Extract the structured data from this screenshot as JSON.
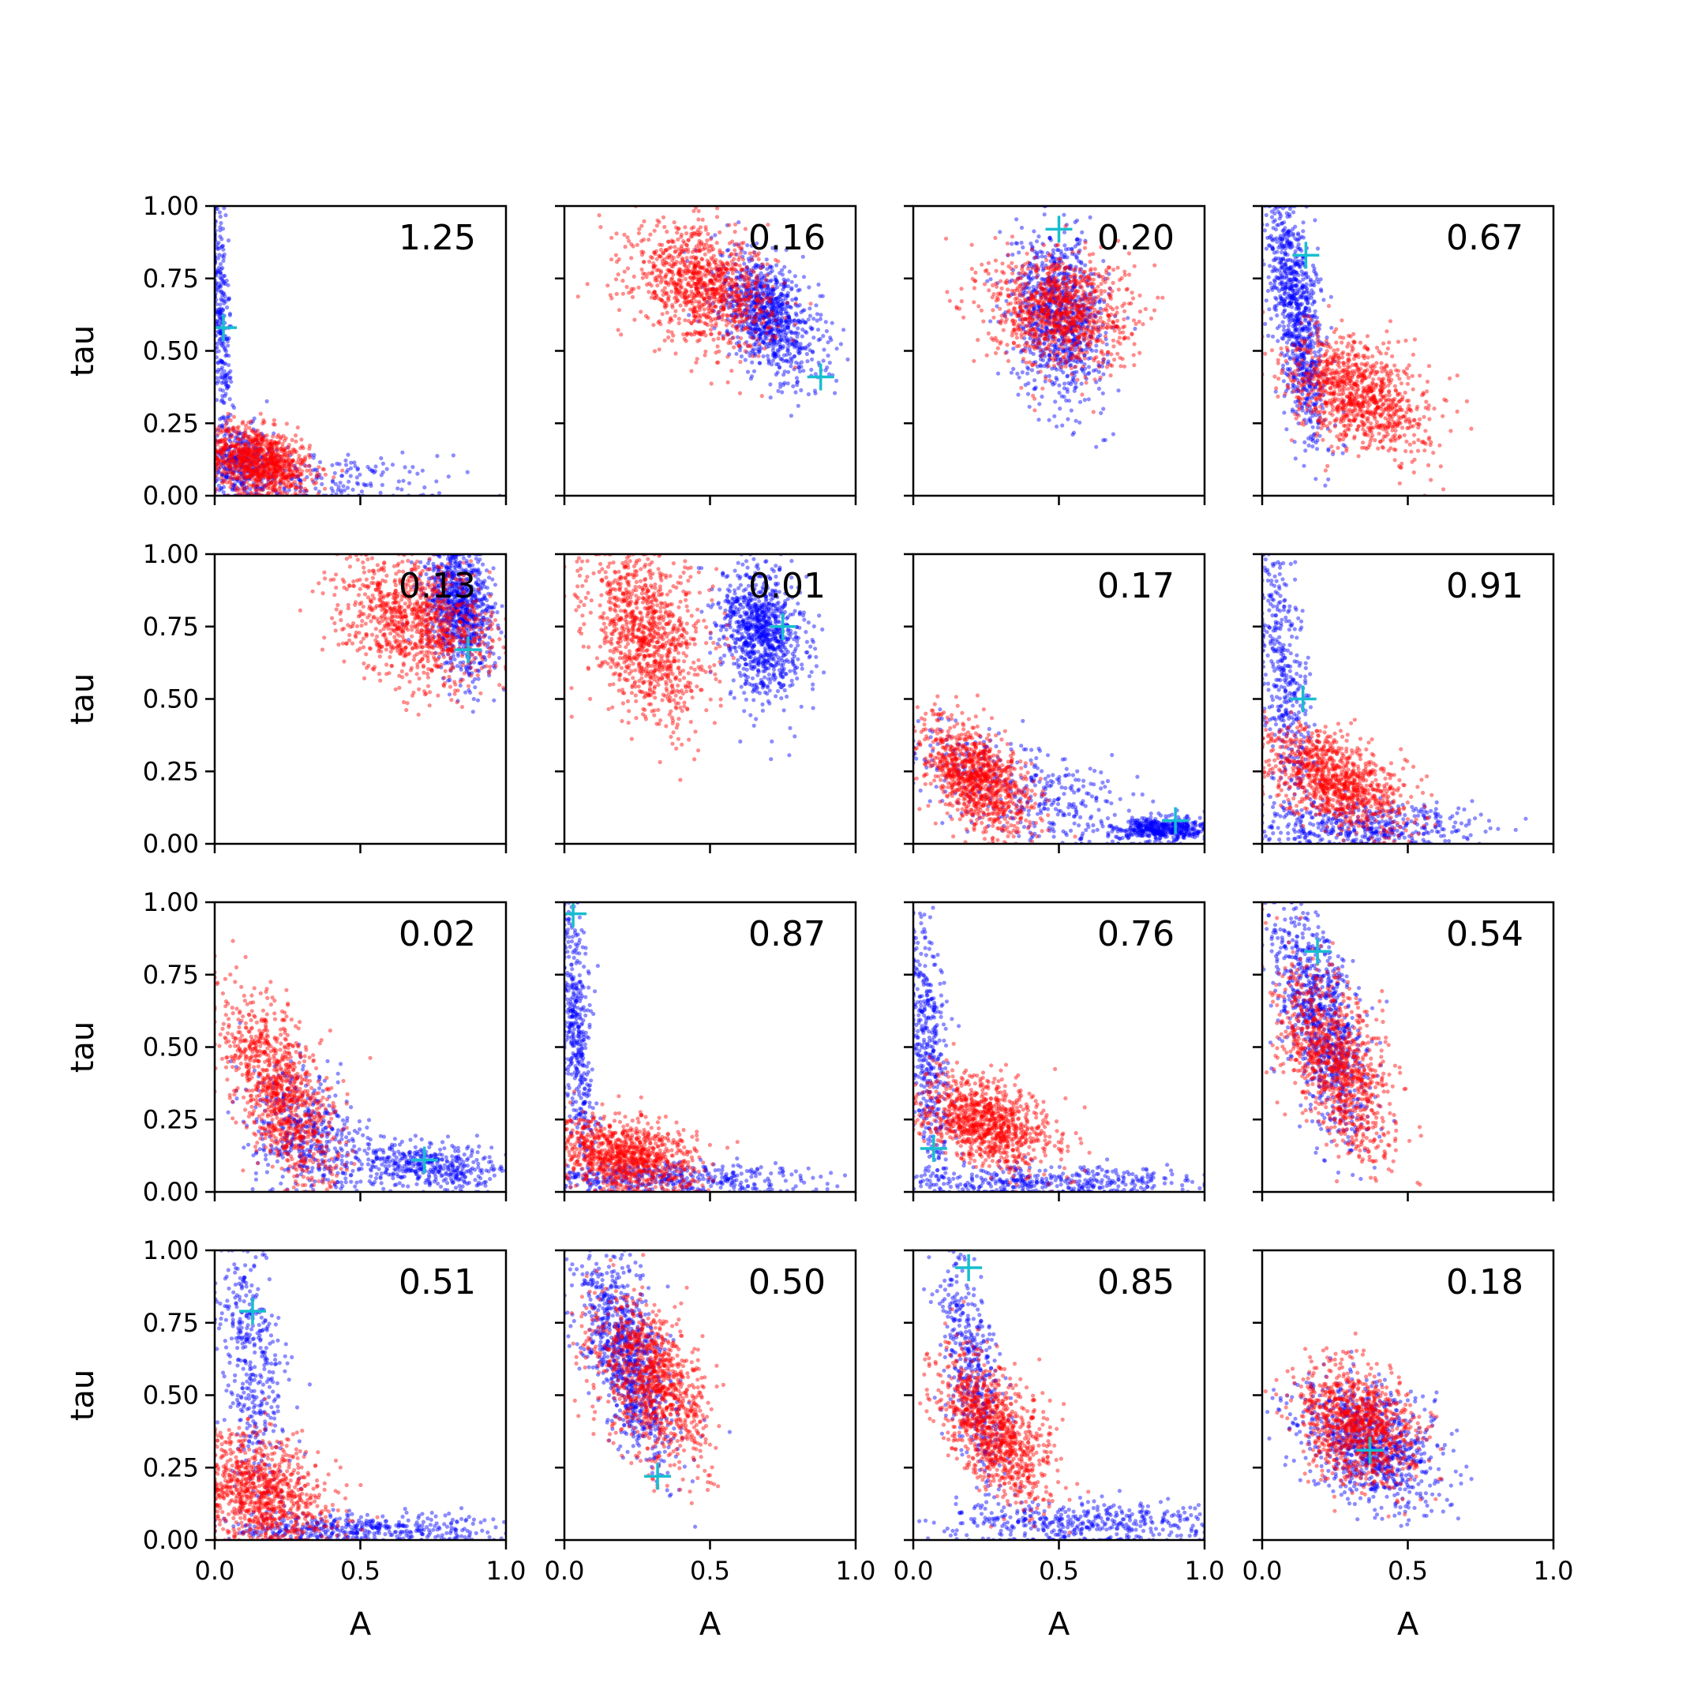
{
  "chart_data": {
    "type": "scatter",
    "layout": "4x4 grid of panels",
    "xlabel": "A",
    "ylabel": "tau",
    "xlim": [
      0,
      1
    ],
    "ylim": [
      0,
      1
    ],
    "x_ticks": [
      "0.0",
      "0.5",
      "1.0"
    ],
    "y_ticks": [
      "0.00",
      "0.25",
      "0.50",
      "0.75",
      "1.00"
    ],
    "grid": false,
    "series_colors": {
      "first": "#0000ff",
      "second": "#ff0000",
      "marker": "#17becf"
    },
    "panels": [
      {
        "annotation": "1.25",
        "marker": [
          0.03,
          0.58
        ],
        "blue": [
          [
            0.02,
            0.62,
            0.02,
            0.25,
            -0.6
          ],
          [
            0.28,
            0.04,
            0.25,
            0.05,
            0
          ],
          [
            0.08,
            0.12,
            0.06,
            0.06,
            0
          ]
        ],
        "red": [
          [
            0.15,
            0.12,
            0.09,
            0.06,
            -0.3
          ]
        ]
      },
      {
        "annotation": "0.16",
        "marker": [
          0.88,
          0.41
        ],
        "blue": [
          [
            0.7,
            0.62,
            0.09,
            0.11,
            -0.5
          ]
        ],
        "red": [
          [
            0.48,
            0.72,
            0.12,
            0.1,
            -0.3
          ]
        ]
      },
      {
        "annotation": "0.20",
        "marker": [
          0.5,
          0.92
        ],
        "blue": [
          [
            0.5,
            0.62,
            0.08,
            0.14,
            -0.2
          ]
        ],
        "red": [
          [
            0.5,
            0.64,
            0.12,
            0.1,
            -0.1
          ]
        ]
      },
      {
        "annotation": "0.67",
        "marker": [
          0.15,
          0.83
        ],
        "blue": [
          [
            0.12,
            0.62,
            0.05,
            0.22,
            -0.6
          ]
        ],
        "red": [
          [
            0.33,
            0.35,
            0.12,
            0.1,
            -0.4
          ]
        ]
      },
      {
        "annotation": "0.13",
        "marker": [
          0.87,
          0.67
        ],
        "blue": [
          [
            0.84,
            0.82,
            0.06,
            0.12,
            -0.3
          ]
        ],
        "red": [
          [
            0.7,
            0.77,
            0.13,
            0.11,
            -0.3
          ]
        ]
      },
      {
        "annotation": "0.01",
        "marker": [
          0.75,
          0.75
        ],
        "blue": [
          [
            0.68,
            0.73,
            0.07,
            0.11,
            -0.2
          ]
        ],
        "red": [
          [
            0.28,
            0.72,
            0.1,
            0.15,
            -0.3
          ]
        ]
      },
      {
        "annotation": "0.17",
        "marker": [
          0.9,
          0.08
        ],
        "blue": [
          [
            0.4,
            0.18,
            0.25,
            0.12,
            -0.7
          ],
          [
            0.85,
            0.05,
            0.08,
            0.02,
            0
          ]
        ],
        "red": [
          [
            0.22,
            0.22,
            0.1,
            0.1,
            -0.5
          ]
        ]
      },
      {
        "annotation": "0.91",
        "marker": [
          0.14,
          0.5
        ],
        "blue": [
          [
            0.08,
            0.55,
            0.05,
            0.25,
            -0.5
          ],
          [
            0.35,
            0.06,
            0.2,
            0.04,
            0
          ]
        ],
        "red": [
          [
            0.25,
            0.22,
            0.12,
            0.09,
            -0.5
          ]
        ]
      },
      {
        "annotation": "0.02",
        "marker": [
          0.72,
          0.11
        ],
        "blue": [
          [
            0.75,
            0.09,
            0.15,
            0.04,
            -0.3
          ],
          [
            0.3,
            0.2,
            0.1,
            0.12,
            -0.3
          ]
        ],
        "red": [
          [
            0.22,
            0.35,
            0.1,
            0.17,
            -0.6
          ]
        ]
      },
      {
        "annotation": "0.87",
        "marker": [
          0.03,
          0.96
        ],
        "blue": [
          [
            0.04,
            0.55,
            0.03,
            0.25,
            -0.5
          ],
          [
            0.35,
            0.04,
            0.25,
            0.03,
            0
          ]
        ],
        "red": [
          [
            0.2,
            0.12,
            0.12,
            0.07,
            -0.3
          ]
        ]
      },
      {
        "annotation": "0.76",
        "marker": [
          0.07,
          0.15
        ],
        "blue": [
          [
            0.05,
            0.5,
            0.04,
            0.25,
            -0.5
          ],
          [
            0.45,
            0.03,
            0.25,
            0.03,
            0
          ]
        ],
        "red": [
          [
            0.25,
            0.24,
            0.12,
            0.08,
            -0.4
          ]
        ]
      },
      {
        "annotation": "0.54",
        "marker": [
          0.19,
          0.83
        ],
        "blue": [
          [
            0.2,
            0.6,
            0.08,
            0.2,
            -0.6
          ]
        ],
        "red": [
          [
            0.25,
            0.45,
            0.1,
            0.17,
            -0.6
          ]
        ]
      },
      {
        "annotation": "0.51",
        "marker": [
          0.13,
          0.79
        ],
        "blue": [
          [
            0.13,
            0.6,
            0.06,
            0.25,
            -0.4
          ],
          [
            0.5,
            0.04,
            0.25,
            0.03,
            0
          ]
        ],
        "red": [
          [
            0.15,
            0.15,
            0.12,
            0.1,
            -0.3
          ]
        ]
      },
      {
        "annotation": "0.50",
        "marker": [
          0.32,
          0.22
        ],
        "blue": [
          [
            0.22,
            0.62,
            0.08,
            0.18,
            -0.6
          ]
        ],
        "red": [
          [
            0.3,
            0.55,
            0.1,
            0.15,
            -0.5
          ]
        ]
      },
      {
        "annotation": "0.85",
        "marker": [
          0.19,
          0.94
        ],
        "blue": [
          [
            0.2,
            0.6,
            0.06,
            0.22,
            -0.6
          ],
          [
            0.6,
            0.06,
            0.25,
            0.04,
            0
          ]
        ],
        "red": [
          [
            0.28,
            0.38,
            0.1,
            0.13,
            -0.6
          ]
        ]
      },
      {
        "annotation": "0.18",
        "marker": [
          0.37,
          0.31
        ],
        "blue": [
          [
            0.37,
            0.33,
            0.12,
            0.11,
            -0.4
          ]
        ],
        "red": [
          [
            0.33,
            0.4,
            0.1,
            0.1,
            -0.3
          ]
        ]
      }
    ]
  }
}
